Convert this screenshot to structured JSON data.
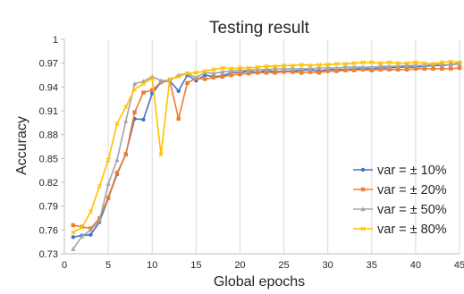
{
  "chart_data": {
    "type": "line",
    "title": "Testing result",
    "xlabel": "Global epochs",
    "ylabel": "Accuracy",
    "xlim": [
      0,
      45
    ],
    "ylim": [
      0.73,
      1.0
    ],
    "xticks": [
      0,
      5,
      10,
      15,
      20,
      25,
      30,
      35,
      40,
      45
    ],
    "yticks": [
      0.73,
      0.76,
      0.79,
      0.82,
      0.85,
      0.88,
      0.91,
      0.94,
      0.97,
      1.0
    ],
    "xtick_labels": [
      "0",
      "5",
      "10",
      "15",
      "20",
      "25",
      "30",
      "35",
      "40",
      "45"
    ],
    "ytick_labels": [
      "0.73",
      "0.76",
      "0.79",
      "0.82",
      "0.85",
      "0.88",
      "0.91",
      "0.94",
      "0.97",
      "1"
    ],
    "grid": "vertical",
    "legend_position": "bottom-right",
    "x": [
      1,
      2,
      3,
      4,
      5,
      6,
      7,
      8,
      9,
      10,
      11,
      12,
      13,
      14,
      15,
      16,
      17,
      18,
      19,
      20,
      21,
      22,
      23,
      24,
      25,
      26,
      27,
      28,
      29,
      30,
      31,
      32,
      33,
      34,
      35,
      36,
      37,
      38,
      39,
      40,
      41,
      42,
      43,
      44,
      45
    ],
    "series": [
      {
        "name": "var = ± 10%",
        "color": "#4472C4",
        "marker": "circle",
        "values": [
          0.751,
          0.753,
          0.754,
          0.77,
          0.8,
          0.83,
          0.856,
          0.9,
          0.899,
          0.932,
          0.946,
          0.948,
          0.935,
          0.955,
          0.948,
          0.955,
          0.953,
          0.954,
          0.958,
          0.958,
          0.96,
          0.958,
          0.961,
          0.959,
          0.96,
          0.96,
          0.961,
          0.962,
          0.96,
          0.962,
          0.962,
          0.962,
          0.963,
          0.963,
          0.963,
          0.964,
          0.964,
          0.965,
          0.965,
          0.965,
          0.966,
          0.967,
          0.967,
          0.968,
          0.97
        ]
      },
      {
        "name": "var = ± 20%",
        "color": "#ED7D31",
        "marker": "square",
        "values": [
          0.766,
          0.764,
          0.762,
          0.775,
          0.801,
          0.832,
          0.855,
          0.908,
          0.933,
          0.936,
          0.946,
          0.948,
          0.9,
          0.945,
          0.951,
          0.95,
          0.952,
          0.953,
          0.955,
          0.956,
          0.957,
          0.958,
          0.958,
          0.958,
          0.959,
          0.959,
          0.958,
          0.959,
          0.958,
          0.96,
          0.96,
          0.961,
          0.961,
          0.962,
          0.961,
          0.962,
          0.962,
          0.962,
          0.962,
          0.963,
          0.963,
          0.963,
          0.963,
          0.963,
          0.964
        ]
      },
      {
        "name": "var = ± 50%",
        "color": "#A5A5A5",
        "marker": "triangle",
        "values": [
          0.736,
          0.752,
          0.76,
          0.772,
          0.818,
          0.848,
          0.897,
          0.944,
          0.947,
          0.953,
          0.948,
          0.948,
          0.955,
          0.957,
          0.952,
          0.958,
          0.957,
          0.959,
          0.96,
          0.961,
          0.961,
          0.962,
          0.962,
          0.963,
          0.963,
          0.963,
          0.963,
          0.963,
          0.964,
          0.964,
          0.964,
          0.965,
          0.965,
          0.965,
          0.965,
          0.966,
          0.966,
          0.966,
          0.967,
          0.967,
          0.967,
          0.968,
          0.968,
          0.968,
          0.969
        ]
      },
      {
        "name": "var = ± 80%",
        "color": "#FFC000",
        "marker": "x",
        "values": [
          0.757,
          0.763,
          0.783,
          0.815,
          0.848,
          0.894,
          0.915,
          0.937,
          0.944,
          0.951,
          0.855,
          0.95,
          0.953,
          0.957,
          0.958,
          0.96,
          0.962,
          0.964,
          0.963,
          0.964,
          0.964,
          0.965,
          0.966,
          0.966,
          0.967,
          0.967,
          0.968,
          0.967,
          0.968,
          0.968,
          0.969,
          0.969,
          0.97,
          0.971,
          0.971,
          0.97,
          0.971,
          0.97,
          0.97,
          0.971,
          0.97,
          0.969,
          0.971,
          0.972,
          0.971
        ]
      }
    ]
  }
}
